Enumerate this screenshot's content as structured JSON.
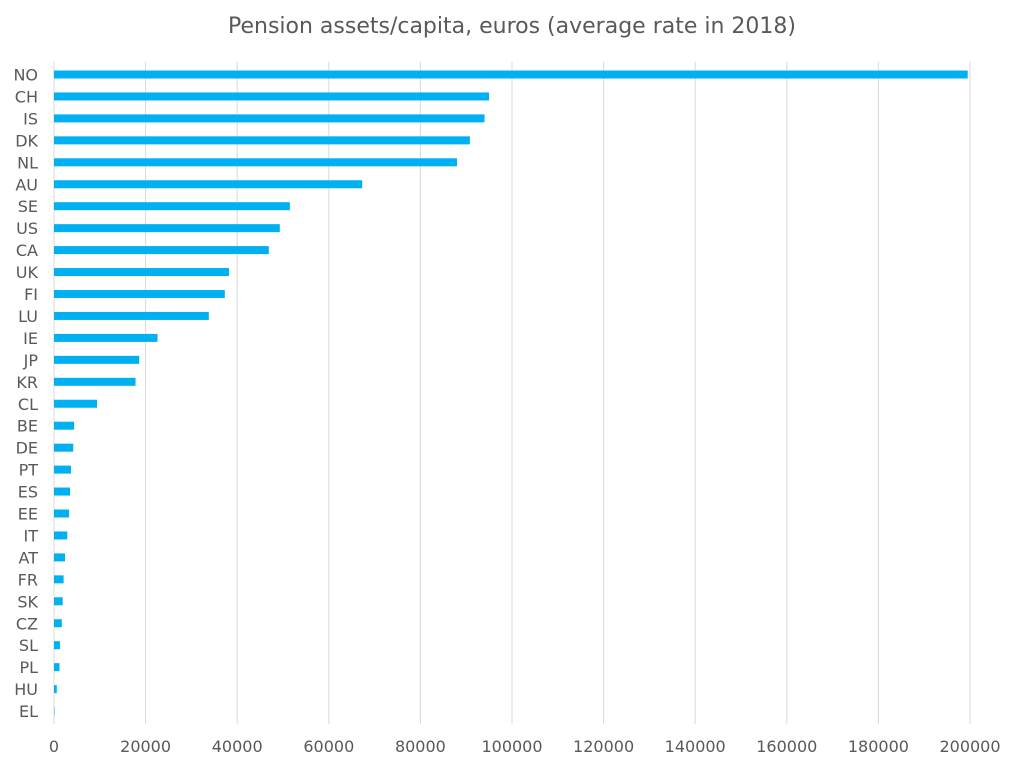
{
  "chart_data": {
    "type": "bar",
    "orientation": "horizontal",
    "title": "Pension assets/capita, euros (average rate in 2018)",
    "categories": [
      "NO",
      "CH",
      "IS",
      "DK",
      "NL",
      "AU",
      "SE",
      "US",
      "CA",
      "UK",
      "FI",
      "LU",
      "IE",
      "JP",
      "KR",
      "CL",
      "BE",
      "DE",
      "PT",
      "ES",
      "EE",
      "IT",
      "AT",
      "FR",
      "SK",
      "CZ",
      "SL",
      "PL",
      "HU",
      "EL"
    ],
    "values": [
      199500,
      95000,
      94000,
      90800,
      88000,
      67300,
      51500,
      49300,
      46900,
      38200,
      37300,
      33800,
      22600,
      18600,
      17800,
      9400,
      4400,
      4200,
      3700,
      3500,
      3300,
      2900,
      2400,
      2100,
      1900,
      1700,
      1300,
      1200,
      600,
      100
    ],
    "xlim": [
      0,
      200000
    ],
    "xticks": [
      0,
      20000,
      40000,
      60000,
      80000,
      100000,
      120000,
      140000,
      160000,
      180000,
      200000
    ],
    "grid": true,
    "legend": "none",
    "bar_color": "#00b0f0",
    "grid_color": "#d9d9d9",
    "text_color": "#595959"
  }
}
